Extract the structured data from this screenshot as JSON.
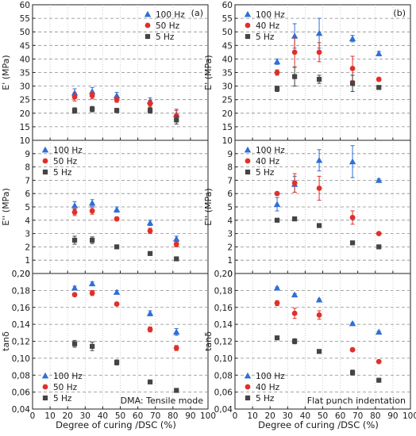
{
  "figure": {
    "xlabel": "Degree of curing /DSC (%)",
    "xticks": [
      "0",
      "10",
      "20",
      "30",
      "40",
      "50",
      "60",
      "70",
      "80",
      "90",
      "100"
    ],
    "colors": {
      "c100": "#2f6fd6",
      "c40": "#e0302a",
      "c5": "#444444"
    }
  },
  "chart_data": [
    {
      "type": "scatter",
      "column": "a",
      "row": 0,
      "panel_label": "(a)",
      "ylabel": "E' (MPa)",
      "ylim": [
        10,
        60
      ],
      "yticks": [
        "10",
        "15",
        "20",
        "25",
        "30",
        "35",
        "40",
        "45",
        "50",
        "55",
        "60"
      ],
      "legend": "top-right",
      "annotation": "",
      "series": [
        {
          "name": "100 Hz",
          "marker": "triangle",
          "x": [
            24,
            34,
            48,
            67,
            82
          ],
          "y": [
            27.5,
            28,
            26.5,
            24.5,
            19.5
          ],
          "err": [
            1.5,
            1.5,
            1.2,
            1.2,
            2.0
          ]
        },
        {
          "name": "50 Hz",
          "marker": "circle",
          "x": [
            24,
            34,
            48,
            67,
            82
          ],
          "y": [
            26,
            26.5,
            25,
            23.5,
            19
          ],
          "err": [
            1.5,
            1.2,
            1.0,
            1.2,
            2.0
          ]
        },
        {
          "name": "5 Hz",
          "marker": "square",
          "x": [
            24,
            34,
            48,
            67,
            82
          ],
          "y": [
            21,
            21.5,
            21,
            21,
            17.5
          ],
          "err": [
            1.0,
            1.0,
            0.8,
            1.0,
            1.5
          ]
        }
      ]
    },
    {
      "type": "scatter",
      "column": "a",
      "row": 1,
      "panel_label": "",
      "ylabel": "E'' (MPa)",
      "ylim": [
        0,
        10
      ],
      "yticks": [
        "0",
        "1",
        "2",
        "3",
        "4",
        "5",
        "6",
        "7",
        "8",
        "9"
      ],
      "legend": "top-left",
      "annotation": "",
      "series": [
        {
          "name": "100 Hz",
          "marker": "triangle",
          "x": [
            24,
            34,
            48,
            67,
            82
          ],
          "y": [
            5.1,
            5.3,
            4.8,
            3.8,
            2.6
          ],
          "err": [
            0.3,
            0.25,
            0.2,
            0.2,
            0.2
          ]
        },
        {
          "name": "50 Hz",
          "marker": "circle",
          "x": [
            24,
            34,
            48,
            67,
            82
          ],
          "y": [
            4.6,
            4.7,
            4.1,
            3.2,
            2.2
          ],
          "err": [
            0.25,
            0.25,
            0.15,
            0.2,
            0.2
          ]
        },
        {
          "name": "5 Hz",
          "marker": "square",
          "x": [
            24,
            34,
            48,
            67,
            82
          ],
          "y": [
            2.5,
            2.5,
            2.0,
            1.5,
            1.1
          ],
          "err": [
            0.3,
            0.25,
            0.1,
            0.1,
            0.1
          ]
        }
      ]
    },
    {
      "type": "scatter",
      "column": "a",
      "row": 2,
      "panel_label": "",
      "ylabel": "tanδ",
      "ylim": [
        0.04,
        0.2
      ],
      "yticks": [
        "0,04",
        "0,06",
        "0,08",
        "0,10",
        "0,12",
        "0,14",
        "0,16",
        "0,18",
        "0,20"
      ],
      "legend": "bottom-left",
      "annotation": "DMA: Tensile mode",
      "series": [
        {
          "name": "100 Hz",
          "marker": "triangle",
          "x": [
            24,
            34,
            48,
            67,
            82
          ],
          "y": [
            0.183,
            0.188,
            0.178,
            0.153,
            0.131
          ],
          "err": [
            0.002,
            0.002,
            0.002,
            0.003,
            0.004
          ]
        },
        {
          "name": "50 Hz",
          "marker": "circle",
          "x": [
            24,
            34,
            48,
            67,
            82
          ],
          "y": [
            0.175,
            0.177,
            0.164,
            0.134,
            0.112
          ],
          "err": [
            0.002,
            0.003,
            0.002,
            0.003,
            0.003
          ]
        },
        {
          "name": "5 Hz",
          "marker": "square",
          "x": [
            24,
            34,
            48,
            67,
            82
          ],
          "y": [
            0.117,
            0.114,
            0.095,
            0.072,
            0.062
          ],
          "err": [
            0.004,
            0.005,
            0.003,
            0.002,
            0.002
          ]
        }
      ]
    },
    {
      "type": "scatter",
      "column": "b",
      "row": 0,
      "panel_label": "(b)",
      "ylabel": "E' (MPa)",
      "ylim": [
        10,
        60
      ],
      "yticks": [
        "10",
        "15",
        "20",
        "25",
        "30",
        "35",
        "40",
        "45",
        "50",
        "55",
        "60"
      ],
      "legend": "top-left",
      "annotation": "",
      "series": [
        {
          "name": "100 Hz",
          "marker": "triangle",
          "x": [
            24,
            34,
            48,
            67,
            82
          ],
          "y": [
            39,
            48.5,
            49.5,
            47.5,
            42
          ],
          "err": [
            1.0,
            4.5,
            5.5,
            1.2,
            0.8
          ]
        },
        {
          "name": "40 Hz",
          "marker": "circle",
          "x": [
            24,
            34,
            48,
            67,
            82
          ],
          "y": [
            35,
            42.5,
            42.5,
            36.5,
            32.5
          ],
          "err": [
            1.0,
            5.5,
            3.5,
            4.5,
            0.6
          ]
        },
        {
          "name": "5 Hz",
          "marker": "square",
          "x": [
            24,
            34,
            48,
            67,
            82
          ],
          "y": [
            29,
            33.5,
            32.5,
            31,
            29.5
          ],
          "err": [
            1.0,
            3.5,
            1.5,
            3.0,
            0.5
          ]
        }
      ]
    },
    {
      "type": "scatter",
      "column": "b",
      "row": 1,
      "panel_label": "",
      "ylabel": "E'' (MPa)",
      "ylim": [
        0,
        10
      ],
      "yticks": [
        "0",
        "1",
        "2",
        "3",
        "4",
        "5",
        "6",
        "7",
        "8",
        "9"
      ],
      "legend": "top-left",
      "annotation": "",
      "series": [
        {
          "name": "100 Hz",
          "marker": "triangle",
          "x": [
            24,
            34,
            48,
            67,
            82
          ],
          "y": [
            5.2,
            6.7,
            8.5,
            8.4,
            7.0
          ],
          "err": [
            0.5,
            0.6,
            0.8,
            1.2,
            0.1
          ]
        },
        {
          "name": "40 Hz",
          "marker": "circle",
          "x": [
            24,
            34,
            48,
            67,
            82
          ],
          "y": [
            6.0,
            6.8,
            6.4,
            4.2,
            3.0
          ],
          "err": [
            0.1,
            0.7,
            0.9,
            0.5,
            0.05
          ]
        },
        {
          "name": "5 Hz",
          "marker": "square",
          "x": [
            24,
            34,
            48,
            67,
            82
          ],
          "y": [
            4.0,
            4.1,
            3.6,
            2.3,
            2.0
          ],
          "err": [
            0.05,
            0.1,
            0.1,
            0.1,
            0.05
          ]
        }
      ]
    },
    {
      "type": "scatter",
      "column": "b",
      "row": 2,
      "panel_label": "",
      "ylabel": "tanδ",
      "ylim": [
        0.04,
        0.2
      ],
      "yticks": [
        "0,04",
        "0,06",
        "0,08",
        "0,10",
        "0,12",
        "0,14",
        "0,16",
        "0,18",
        "0,20"
      ],
      "legend": "bottom-left",
      "annotation": "Flat punch indentation",
      "series": [
        {
          "name": "100 Hz",
          "marker": "triangle",
          "x": [
            24,
            34,
            48,
            67,
            82
          ],
          "y": [
            0.183,
            0.175,
            0.169,
            0.141,
            0.131
          ],
          "err": [
            0.001,
            0.001,
            0.001,
            0.001,
            0.001
          ]
        },
        {
          "name": "40 Hz",
          "marker": "circle",
          "x": [
            24,
            34,
            48,
            67,
            82
          ],
          "y": [
            0.165,
            0.153,
            0.151,
            0.11,
            0.096
          ],
          "err": [
            0.003,
            0.006,
            0.005,
            0.002,
            0.001
          ]
        },
        {
          "name": "5 Hz",
          "marker": "square",
          "x": [
            24,
            34,
            48,
            67,
            82
          ],
          "y": [
            0.124,
            0.12,
            0.108,
            0.083,
            0.074
          ],
          "err": [
            0.001,
            0.003,
            0.001,
            0.003,
            0.001
          ]
        }
      ]
    }
  ]
}
